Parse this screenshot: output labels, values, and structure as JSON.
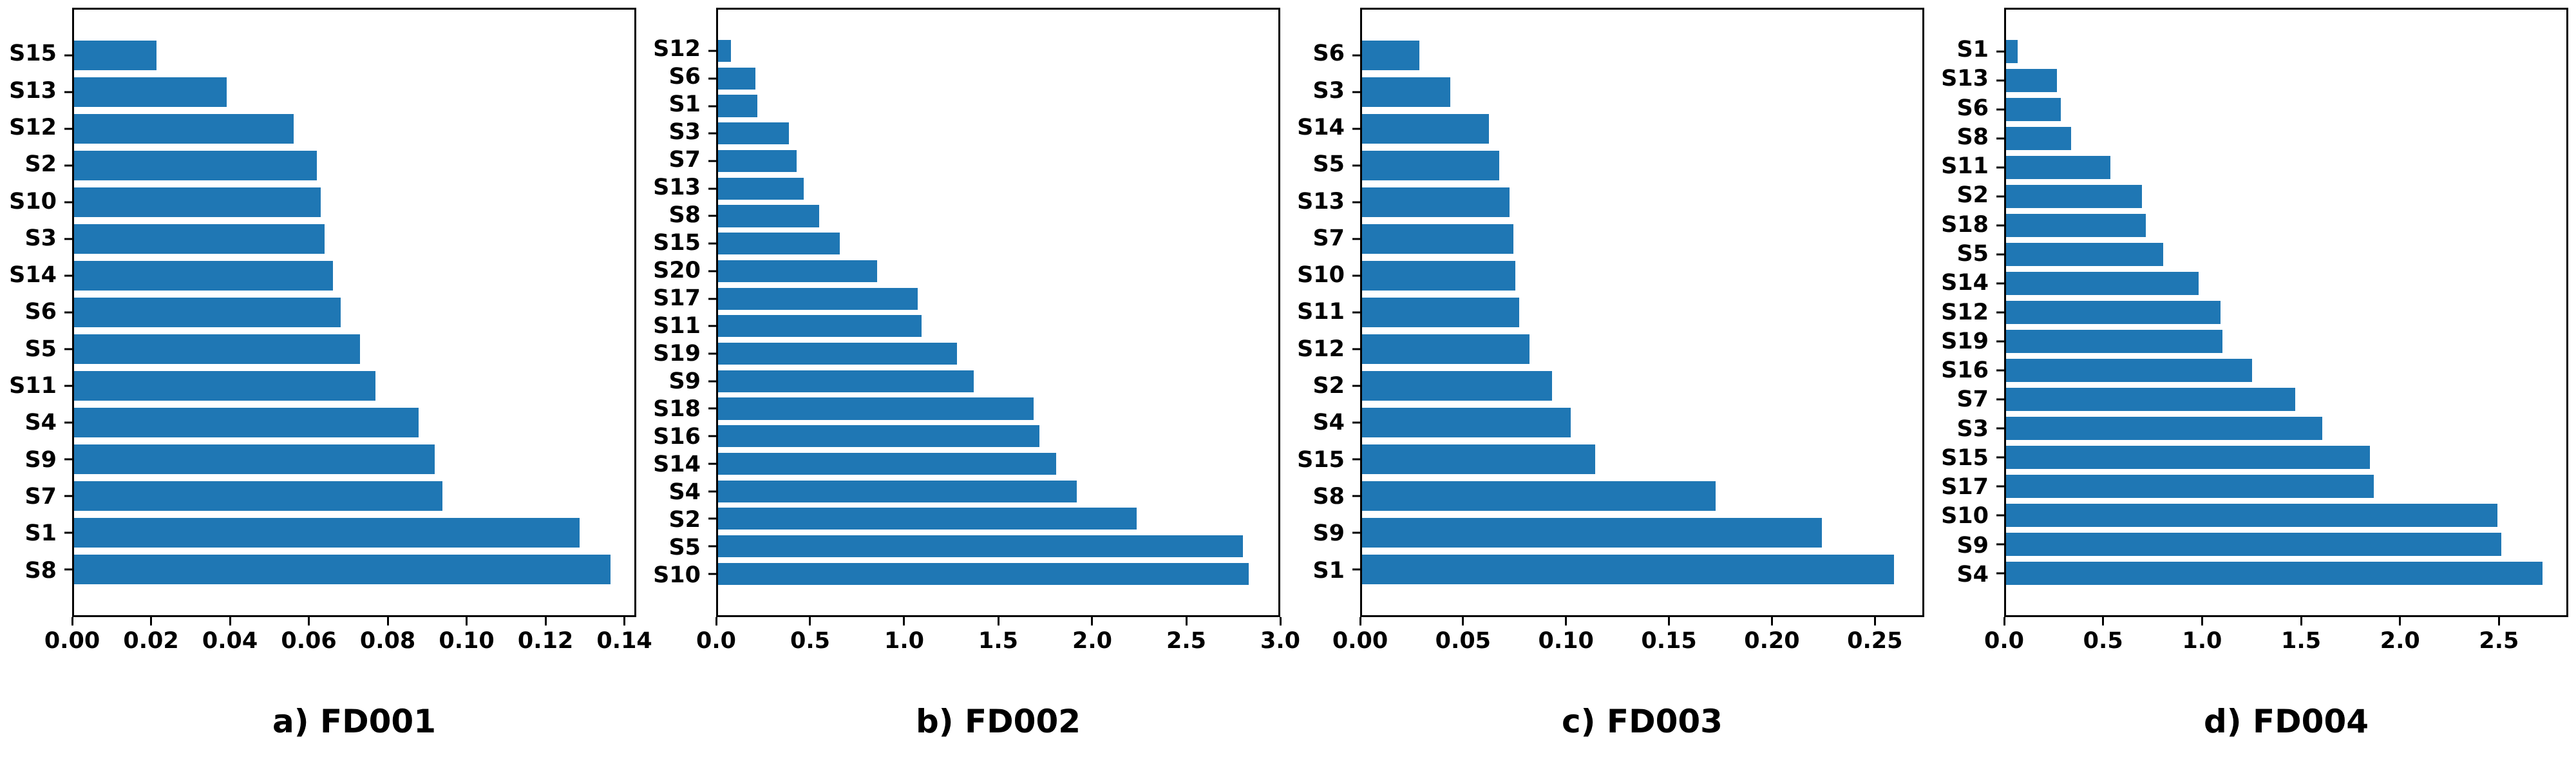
{
  "figure": {
    "background_color": "#ffffff",
    "bar_color": "#1f77b4",
    "axis_color": "#000000",
    "text_color": "#000000"
  },
  "chart_data": [
    {
      "id": "FD001",
      "title": "a) FD001",
      "type": "bar",
      "orientation": "horizontal",
      "legend": null,
      "grid": false,
      "xlim": [
        0,
        0.143
      ],
      "xticks": [
        0,
        0.02,
        0.04,
        0.06,
        0.08,
        0.1,
        0.12,
        0.14
      ],
      "xtick_labels": [
        "0.00",
        "0.02",
        "0.04",
        "0.06",
        "0.08",
        "0.10",
        "0.12",
        "0.14"
      ],
      "categories_top_to_bottom": [
        "S15",
        "S13",
        "S12",
        "S2",
        "S10",
        "S3",
        "S14",
        "S6",
        "S5",
        "S11",
        "S4",
        "S9",
        "S7",
        "S1",
        "S8"
      ],
      "values": [
        0.021,
        0.039,
        0.056,
        0.062,
        0.063,
        0.064,
        0.066,
        0.068,
        0.073,
        0.077,
        0.088,
        0.092,
        0.094,
        0.129,
        0.137
      ]
    },
    {
      "id": "FD002",
      "title": "b) FD002",
      "type": "bar",
      "orientation": "horizontal",
      "legend": null,
      "grid": false,
      "xlim": [
        0,
        3.0
      ],
      "xticks": [
        0,
        0.5,
        1.0,
        1.5,
        2.0,
        2.5,
        3.0
      ],
      "xtick_labels": [
        "0.0",
        "0.5",
        "1.0",
        "1.5",
        "2.0",
        "2.5",
        "3.0"
      ],
      "categories_top_to_bottom": [
        "S12",
        "S6",
        "S1",
        "S3",
        "S7",
        "S13",
        "S8",
        "S15",
        "S20",
        "S17",
        "S11",
        "S19",
        "S9",
        "S18",
        "S16",
        "S14",
        "S4",
        "S2",
        "S5",
        "S10"
      ],
      "values": [
        0.07,
        0.2,
        0.21,
        0.38,
        0.42,
        0.46,
        0.54,
        0.65,
        0.85,
        1.07,
        1.09,
        1.28,
        1.37,
        1.69,
        1.72,
        1.81,
        1.92,
        2.24,
        2.81,
        2.84
      ]
    },
    {
      "id": "FD003",
      "title": "c) FD003",
      "type": "bar",
      "orientation": "horizontal",
      "legend": null,
      "grid": false,
      "xlim": [
        0,
        0.274
      ],
      "xticks": [
        0,
        0.05,
        0.1,
        0.15,
        0.2,
        0.25
      ],
      "xtick_labels": [
        "0.00",
        "0.05",
        "0.10",
        "0.15",
        "0.20",
        "0.25"
      ],
      "categories_top_to_bottom": [
        "S6",
        "S3",
        "S14",
        "S5",
        "S13",
        "S7",
        "S10",
        "S11",
        "S12",
        "S2",
        "S4",
        "S15",
        "S8",
        "S9",
        "S1"
      ],
      "values": [
        0.028,
        0.043,
        0.062,
        0.067,
        0.072,
        0.074,
        0.075,
        0.077,
        0.082,
        0.093,
        0.102,
        0.114,
        0.173,
        0.225,
        0.26
      ]
    },
    {
      "id": "FD004",
      "title": "d) FD004",
      "type": "bar",
      "orientation": "horizontal",
      "legend": null,
      "grid": false,
      "xlim": [
        0,
        2.85
      ],
      "xticks": [
        0,
        0.5,
        1.0,
        1.5,
        2.0,
        2.5
      ],
      "xtick_labels": [
        "0.0",
        "0.5",
        "1.0",
        "1.5",
        "2.0",
        "2.5"
      ],
      "categories_top_to_bottom": [
        "S1",
        "S13",
        "S6",
        "S8",
        "S11",
        "S2",
        "S18",
        "S5",
        "S14",
        "S12",
        "S19",
        "S16",
        "S7",
        "S3",
        "S15",
        "S17",
        "S10",
        "S9",
        "S4"
      ],
      "values": [
        0.06,
        0.26,
        0.28,
        0.33,
        0.53,
        0.69,
        0.71,
        0.8,
        0.98,
        1.09,
        1.1,
        1.25,
        1.47,
        1.61,
        1.85,
        1.87,
        2.5,
        2.52,
        2.73
      ]
    }
  ]
}
